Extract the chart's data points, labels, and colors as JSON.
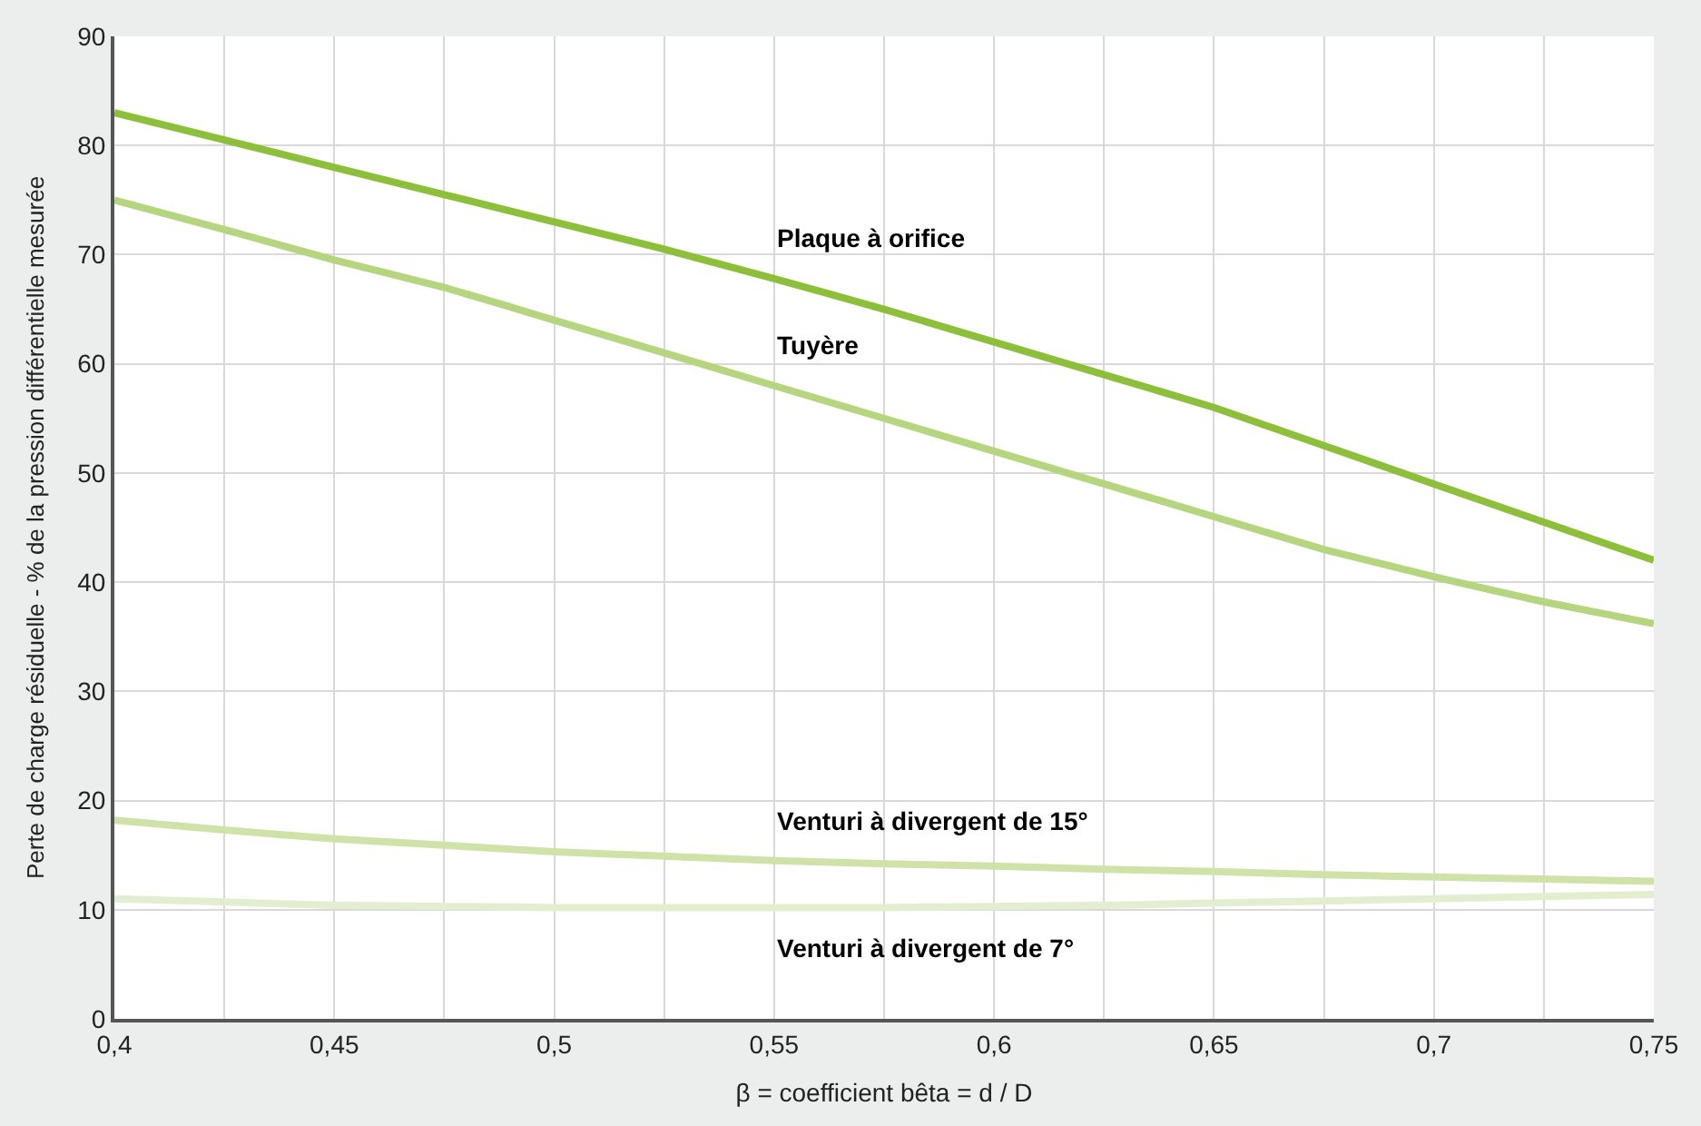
{
  "chart_data": {
    "type": "line",
    "xlabel": "β = coefficient bêta = d / D",
    "ylabel": "Perte de charge résiduelle - % de la pression différentielle mesurée",
    "x": [
      0.4,
      0.425,
      0.45,
      0.475,
      0.5,
      0.525,
      0.55,
      0.575,
      0.6,
      0.625,
      0.65,
      0.675,
      0.7,
      0.725,
      0.75
    ],
    "series": [
      {
        "name": "Plaque à orifice",
        "color": "#8cbf3a",
        "values": [
          83,
          80.5,
          78,
          75.5,
          73,
          70.5,
          67.8,
          65,
          62,
          59,
          56,
          52.5,
          49,
          45.5,
          42
        ]
      },
      {
        "name": "Tuyère",
        "color": "#b5d67f",
        "values": [
          75,
          72.3,
          69.5,
          67,
          64,
          61,
          58,
          55,
          52,
          49,
          46,
          43,
          40.5,
          38.2,
          36.2
        ]
      },
      {
        "name": "Venturi à divergent de 15°",
        "color": "#cfe3a8",
        "values": [
          18.2,
          17.3,
          16.5,
          15.9,
          15.3,
          14.9,
          14.5,
          14.2,
          14,
          13.7,
          13.5,
          13.2,
          13,
          12.8,
          12.6
        ]
      },
      {
        "name": "Venturi à divergent de 7°",
        "color": "#e3eed0",
        "values": [
          11,
          10.7,
          10.4,
          10.3,
          10.2,
          10.2,
          10.2,
          10.2,
          10.3,
          10.4,
          10.6,
          10.8,
          11,
          11.2,
          11.4
        ]
      }
    ],
    "xlim": [
      0.4,
      0.75
    ],
    "xticks": [
      {
        "value": 0.4,
        "label": "0,4"
      },
      {
        "value": 0.425,
        "label": null
      },
      {
        "value": 0.45,
        "label": "0,45"
      },
      {
        "value": 0.475,
        "label": null
      },
      {
        "value": 0.5,
        "label": "0,5"
      },
      {
        "value": 0.525,
        "label": null
      },
      {
        "value": 0.55,
        "label": "0,55"
      },
      {
        "value": 0.575,
        "label": null
      },
      {
        "value": 0.6,
        "label": "0,6"
      },
      {
        "value": 0.625,
        "label": null
      },
      {
        "value": 0.65,
        "label": "0,65"
      },
      {
        "value": 0.675,
        "label": null
      },
      {
        "value": 0.7,
        "label": "0,7"
      },
      {
        "value": 0.725,
        "label": null
      },
      {
        "value": 0.75,
        "label": "0,75"
      }
    ],
    "ylim": [
      0,
      90
    ],
    "yticks": [
      0,
      10,
      20,
      30,
      40,
      50,
      60,
      70,
      80,
      90
    ],
    "grid": true,
    "legend": false,
    "marker": "none",
    "line_style": "solid"
  }
}
